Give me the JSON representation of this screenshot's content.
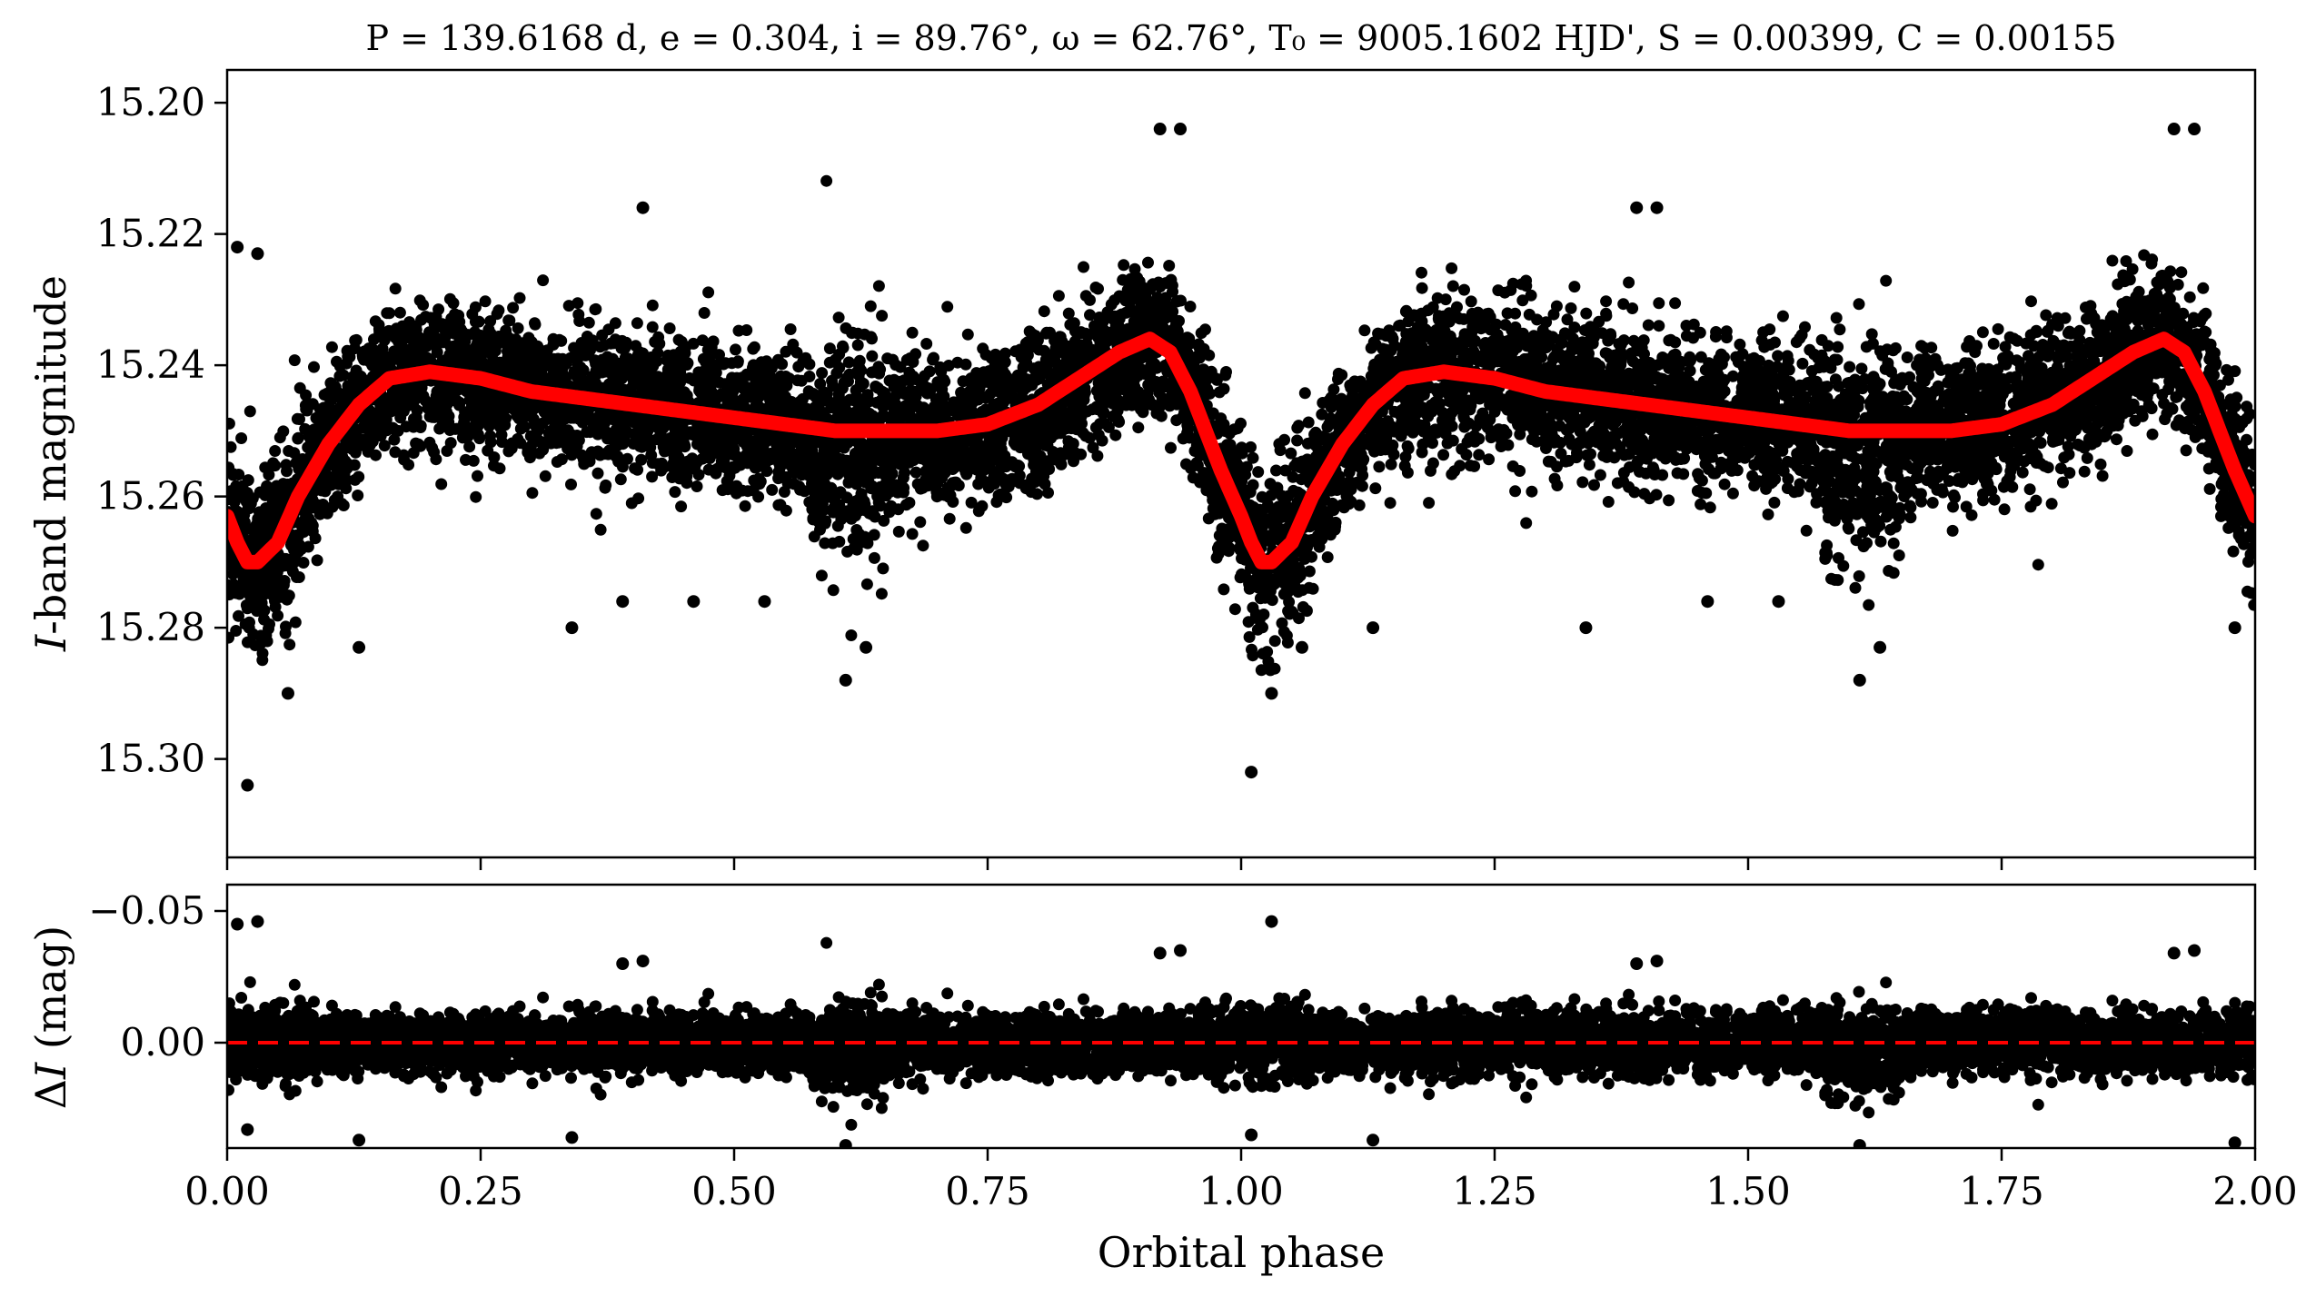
{
  "chart_data": [
    {
      "type": "scatter",
      "title": "P = 139.6168 d, e = 0.304, i = 89.76°, ω = 62.76°, T₀ = 9005.1602 HJD', S = 0.00399, C = 0.00155",
      "xlabel": "",
      "ylabel": "I-band magnitude",
      "xlim": [
        0.0,
        2.0
      ],
      "ylim": [
        15.315,
        15.195
      ],
      "y_inverted": true,
      "grid": false,
      "yticks": [
        "15.20",
        "15.22",
        "15.24",
        "15.26",
        "15.28",
        "15.30"
      ],
      "ytick_values": [
        15.2,
        15.22,
        15.24,
        15.26,
        15.28,
        15.3
      ],
      "colors": {
        "points": "#000000",
        "model": "#ff0000"
      },
      "series": [
        {
          "kind": "model_curve",
          "x": [
            0.0,
            0.01,
            0.02,
            0.03,
            0.05,
            0.07,
            0.1,
            0.13,
            0.16,
            0.2,
            0.25,
            0.3,
            0.4,
            0.5,
            0.6,
            0.7,
            0.75,
            0.8,
            0.85,
            0.88,
            0.91,
            0.93,
            0.95,
            0.98,
            1.0,
            1.01,
            1.02,
            1.03,
            1.05,
            1.07,
            1.1,
            1.13,
            1.16,
            1.2,
            1.25,
            1.3,
            1.4,
            1.5,
            1.6,
            1.7,
            1.75,
            1.8,
            1.85,
            1.88,
            1.91,
            1.93,
            1.95,
            1.98,
            2.0
          ],
          "y": [
            15.263,
            15.267,
            15.27,
            15.27,
            15.267,
            15.26,
            15.252,
            15.246,
            15.242,
            15.241,
            15.242,
            15.244,
            15.246,
            15.248,
            15.25,
            15.25,
            15.249,
            15.246,
            15.241,
            15.238,
            15.236,
            15.238,
            15.244,
            15.256,
            15.263,
            15.267,
            15.27,
            15.27,
            15.267,
            15.26,
            15.252,
            15.246,
            15.242,
            15.241,
            15.242,
            15.244,
            15.246,
            15.248,
            15.25,
            15.25,
            15.249,
            15.246,
            15.241,
            15.238,
            15.236,
            15.238,
            15.244,
            15.256,
            15.263
          ]
        },
        {
          "kind": "outlier_points",
          "x": [
            0.01,
            0.03,
            0.02,
            0.06,
            0.13,
            0.34,
            0.39,
            0.41,
            0.46,
            0.53,
            0.61,
            0.63,
            0.92,
            0.94,
            1.01,
            1.03,
            1.06,
            1.13,
            1.34,
            1.39,
            1.41,
            1.46,
            1.53,
            1.61,
            1.63,
            1.92,
            1.94,
            1.98
          ],
          "y": [
            15.222,
            15.223,
            15.304,
            15.29,
            15.283,
            15.28,
            15.276,
            15.216,
            15.276,
            15.276,
            15.288,
            15.283,
            15.204,
            15.204,
            15.302,
            15.29,
            15.283,
            15.28,
            15.28,
            15.216,
            15.216,
            15.276,
            15.276,
            15.288,
            15.283,
            15.204,
            15.204,
            15.28
          ]
        }
      ]
    },
    {
      "type": "scatter",
      "title": "",
      "xlabel": "Orbital phase",
      "ylabel": "ΔI (mag)",
      "xlim": [
        0.0,
        2.0
      ],
      "ylim": [
        0.04,
        -0.06
      ],
      "y_inverted": true,
      "grid": false,
      "xticks": [
        "0.00",
        "0.25",
        "0.50",
        "0.75",
        "1.00",
        "1.25",
        "1.50",
        "1.75",
        "2.00"
      ],
      "xtick_values": [
        0.0,
        0.25,
        0.5,
        0.75,
        1.0,
        1.25,
        1.5,
        1.75,
        2.0
      ],
      "yticks": [
        "−0.05",
        "0.00"
      ],
      "ytick_values": [
        -0.05,
        0.0
      ],
      "colors": {
        "points": "#000000",
        "zero_line": "#ff0000"
      },
      "series": [
        {
          "kind": "zero_line",
          "y": 0.0
        },
        {
          "kind": "outlier_points",
          "x": [
            0.01,
            0.03,
            0.02,
            0.13,
            0.34,
            0.39,
            0.41,
            0.61,
            0.92,
            0.94,
            1.01,
            1.03,
            1.13,
            1.39,
            1.41,
            1.61,
            1.92,
            1.94,
            1.98
          ],
          "y": [
            -0.045,
            -0.046,
            0.033,
            0.037,
            0.036,
            -0.03,
            -0.031,
            0.039,
            -0.034,
            -0.035,
            0.035,
            -0.046,
            0.037,
            -0.03,
            -0.031,
            0.039,
            -0.034,
            -0.035,
            0.038
          ]
        }
      ]
    }
  ]
}
